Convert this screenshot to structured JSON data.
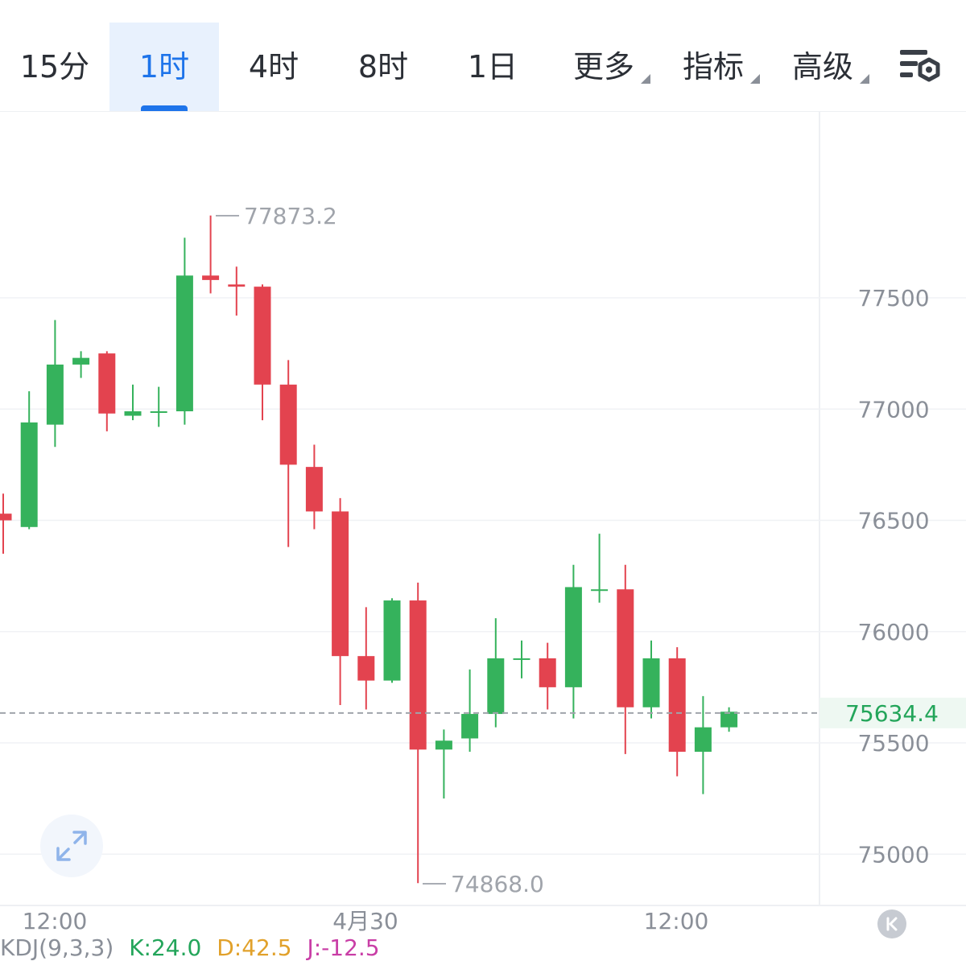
{
  "toolbar": {
    "tabs": [
      {
        "label": "15分",
        "active": false,
        "dropdown": false
      },
      {
        "label": "1时",
        "active": true,
        "dropdown": false
      },
      {
        "label": "4时",
        "active": false,
        "dropdown": false
      },
      {
        "label": "8时",
        "active": false,
        "dropdown": false
      },
      {
        "label": "1日",
        "active": false,
        "dropdown": false
      },
      {
        "label": "更多",
        "active": false,
        "dropdown": true
      },
      {
        "label": "指标",
        "active": false,
        "dropdown": true
      },
      {
        "label": "高级",
        "active": false,
        "dropdown": true
      }
    ],
    "settings_icon": "chart-settings-icon"
  },
  "chart_data": {
    "type": "candlestick",
    "y_ticks": [
      "77500",
      "77000",
      "76500",
      "76000",
      "75500",
      "75000"
    ],
    "x_ticks": [
      "12:00",
      "4月30",
      "12:00"
    ],
    "high_label": "77873.2",
    "low_label": "74868.0",
    "last_price": "75634.4",
    "colors": {
      "up": "#35b25c",
      "down": "#e3434f",
      "last_price": "#23a55a"
    },
    "candles": [
      {
        "o": 76530,
        "c": 76500,
        "h": 76620,
        "l": 76350
      },
      {
        "o": 76470,
        "c": 76940,
        "h": 77080,
        "l": 76460
      },
      {
        "o": 76930,
        "c": 77200,
        "h": 77400,
        "l": 76830
      },
      {
        "o": 77200,
        "c": 77230,
        "h": 77260,
        "l": 77140
      },
      {
        "o": 77250,
        "c": 76980,
        "h": 77260,
        "l": 76900
      },
      {
        "o": 76970,
        "c": 76990,
        "h": 77110,
        "l": 76950
      },
      {
        "o": 76990,
        "c": 76990,
        "h": 77100,
        "l": 76920
      },
      {
        "o": 76990,
        "c": 77600,
        "h": 77770,
        "l": 76930
      },
      {
        "o": 77600,
        "c": 77580,
        "h": 77870,
        "l": 77520
      },
      {
        "o": 77560,
        "c": 77550,
        "h": 77640,
        "l": 77420
      },
      {
        "o": 77550,
        "c": 77110,
        "h": 77560,
        "l": 76950
      },
      {
        "o": 77110,
        "c": 76750,
        "h": 77220,
        "l": 76380
      },
      {
        "o": 76740,
        "c": 76540,
        "h": 76840,
        "l": 76460
      },
      {
        "o": 76540,
        "c": 75890,
        "h": 76600,
        "l": 75670
      },
      {
        "o": 75890,
        "c": 75780,
        "h": 76110,
        "l": 75650
      },
      {
        "o": 75780,
        "c": 76140,
        "h": 76150,
        "l": 75770
      },
      {
        "o": 76140,
        "c": 75470,
        "h": 76220,
        "l": 74870
      },
      {
        "o": 75470,
        "c": 75510,
        "h": 75560,
        "l": 75250
      },
      {
        "o": 75520,
        "c": 75630,
        "h": 75830,
        "l": 75460
      },
      {
        "o": 75630,
        "c": 75880,
        "h": 76060,
        "l": 75570
      },
      {
        "o": 75880,
        "c": 75880,
        "h": 75960,
        "l": 75790
      },
      {
        "o": 75880,
        "c": 75750,
        "h": 75950,
        "l": 75650
      },
      {
        "o": 75750,
        "c": 76200,
        "h": 76300,
        "l": 75610
      },
      {
        "o": 76190,
        "c": 76190,
        "h": 76440,
        "l": 76130
      },
      {
        "o": 76190,
        "c": 75660,
        "h": 76300,
        "l": 75450
      },
      {
        "o": 75660,
        "c": 75880,
        "h": 75960,
        "l": 75610
      },
      {
        "o": 75880,
        "c": 75460,
        "h": 75930,
        "l": 75350
      },
      {
        "o": 75460,
        "c": 75570,
        "h": 75710,
        "l": 75270
      },
      {
        "o": 75570,
        "c": 75640,
        "h": 75660,
        "l": 75550
      }
    ]
  },
  "indicator": {
    "name": "KDJ(9,3,3)",
    "k": "K:24.0",
    "d": "D:42.5",
    "j": "J:-12.5"
  },
  "icons": {
    "expand": "expand-arrows-icon",
    "scroll_end": "scroll-to-latest-icon"
  }
}
